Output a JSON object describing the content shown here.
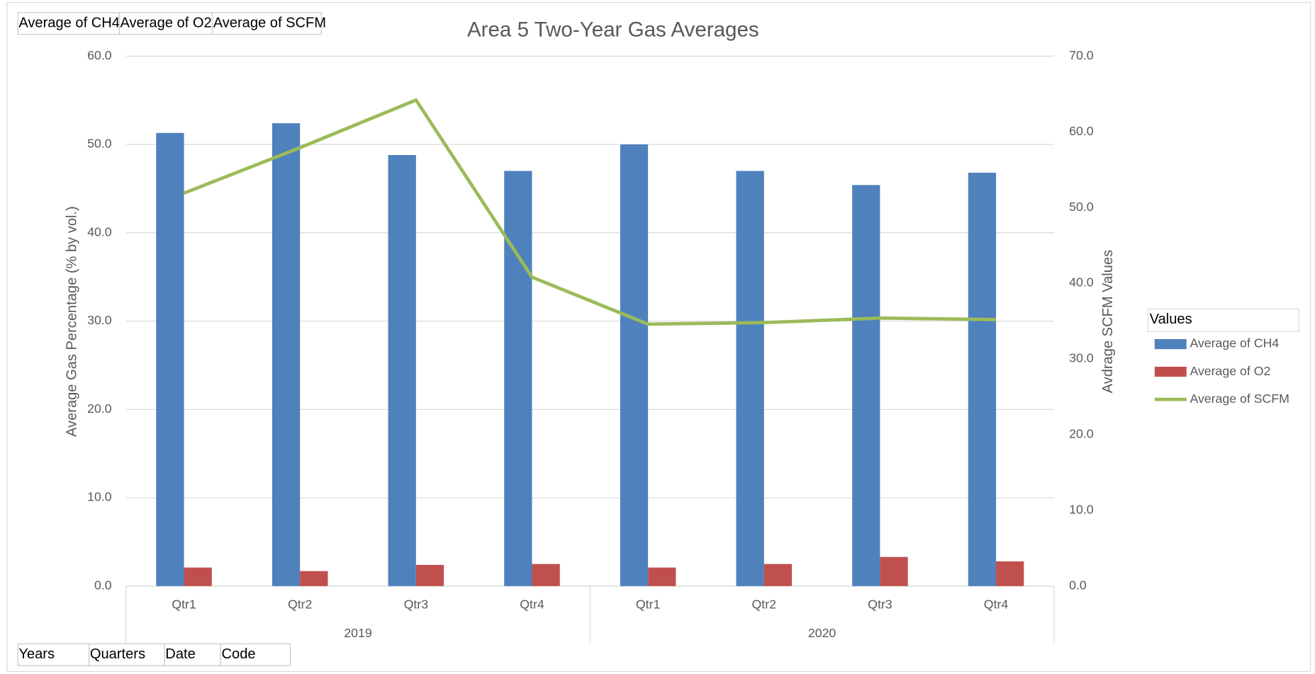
{
  "chart_data": {
    "type": "bar_line_combo",
    "title": "Area 5 Two-Year Gas Averages",
    "y_label": "Average Gas Percentage (% by vol.)",
    "y2_label": "Avdrage SCFM Values",
    "category_groups": [
      {
        "name": "2019",
        "categories": [
          "Qtr1",
          "Qtr2",
          "Qtr3",
          "Qtr4"
        ]
      },
      {
        "name": "2020",
        "categories": [
          "Qtr1",
          "Qtr2",
          "Qtr3",
          "Qtr4"
        ]
      }
    ],
    "series": [
      {
        "name": "Average of CH4",
        "type": "bar",
        "color": "#4f81bd",
        "values": [
          51.3,
          52.4,
          48.8,
          47.0,
          50.0,
          47.0,
          45.4,
          46.8
        ]
      },
      {
        "name": "Average of O2",
        "type": "bar",
        "color": "#c0504d",
        "values": [
          2.1,
          1.7,
          2.4,
          2.5,
          2.1,
          2.5,
          3.3,
          2.8
        ]
      },
      {
        "name": "Average of SCFM",
        "type": "line",
        "axis": "y2",
        "color": "#9bbb59",
        "values": [
          51.9,
          57.9,
          64.2,
          40.8,
          34.6,
          34.8,
          35.4,
          35.2
        ]
      }
    ],
    "ylim": [
      0,
      60
    ],
    "yticks": [
      {
        "value": 0,
        "label": "0.0"
      },
      {
        "value": 10,
        "label": "10.0"
      },
      {
        "value": 20,
        "label": "20.0"
      },
      {
        "value": 30,
        "label": "30.0"
      },
      {
        "value": 40,
        "label": "40.0"
      },
      {
        "value": 50,
        "label": "50.0"
      },
      {
        "value": 60,
        "label": "60.0"
      }
    ],
    "y2lim": [
      0,
      70
    ],
    "y2ticks": [
      {
        "value": 0,
        "label": "0.0"
      },
      {
        "value": 10,
        "label": "10.0"
      },
      {
        "value": 20,
        "label": "20.0"
      },
      {
        "value": 30,
        "label": "30.0"
      },
      {
        "value": 40,
        "label": "40.0"
      },
      {
        "value": 50,
        "label": "50.0"
      },
      {
        "value": 60,
        "label": "60.0"
      },
      {
        "value": 70,
        "label": "70.0"
      }
    ],
    "grid": true,
    "legend_title": "Values",
    "legend_position": "right",
    "pivot_value_fields": [
      "Average of CH4",
      "Average of O2",
      "Average of SCFM"
    ],
    "pivot_axis_fields": [
      "Years",
      "Quarters",
      "Date",
      "Code"
    ]
  }
}
